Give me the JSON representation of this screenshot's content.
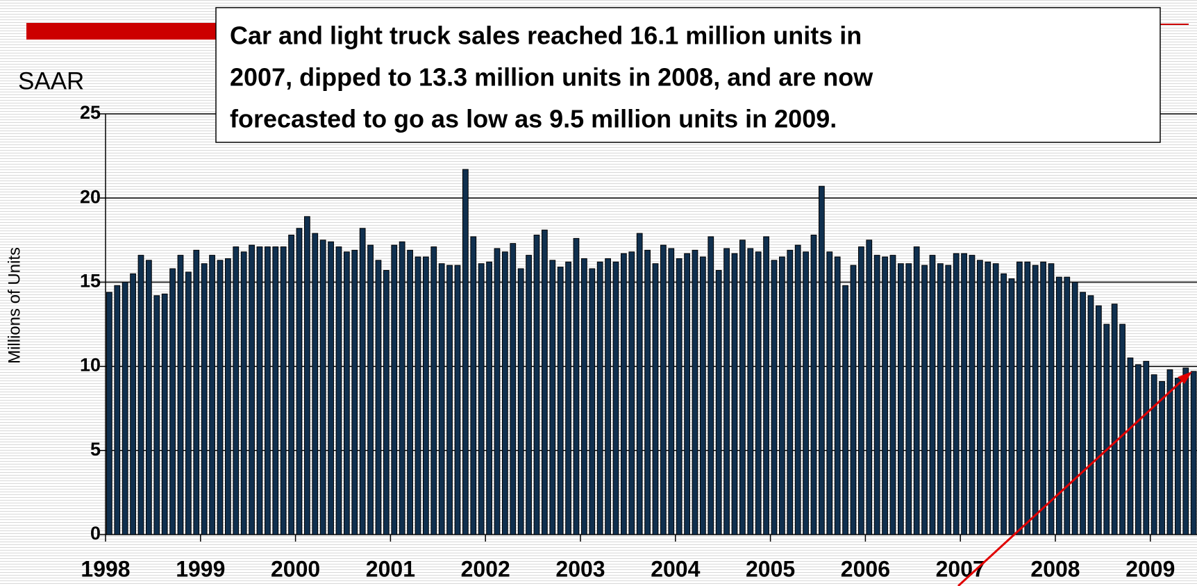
{
  "chart_data": {
    "type": "bar",
    "header": "SAAR",
    "annotation": [
      "Car and light truck sales reached 16.1 million units in",
      "2007, dipped to 13.3 million units in 2008, and are now",
      "forecasted to go as low as 9.5 million units in 2009."
    ],
    "y_label": "Millions of Units",
    "color": "#10304f",
    "categories": [
      "1998",
      null,
      null,
      null,
      null,
      null,
      null,
      null,
      null,
      null,
      null,
      null,
      "1999",
      null,
      null,
      null,
      null,
      null,
      null,
      null,
      null,
      null,
      null,
      null,
      "2000",
      null,
      null,
      null,
      null,
      null,
      null,
      null,
      null,
      null,
      null,
      null,
      "2001",
      null,
      null,
      null,
      null,
      null,
      null,
      null,
      null,
      null,
      null,
      null,
      "2002",
      null,
      null,
      null,
      null,
      null,
      null,
      null,
      null,
      null,
      null,
      null,
      "2003",
      null,
      null,
      null,
      null,
      null,
      null,
      null,
      null,
      null,
      null,
      null,
      "2004",
      null,
      null,
      null,
      null,
      null,
      null,
      null,
      null,
      null,
      null,
      null,
      "2005",
      null,
      null,
      null,
      null,
      null,
      null,
      null,
      null,
      null,
      null,
      null,
      "2006",
      null,
      null,
      null,
      null,
      null,
      null,
      null,
      null,
      null,
      null,
      null,
      "2007",
      null,
      null,
      null,
      null,
      null,
      null,
      null,
      null,
      null,
      null,
      null,
      "2008",
      null,
      null,
      null,
      null,
      null,
      null,
      null,
      null,
      null,
      null,
      null,
      "2009",
      null,
      null,
      null,
      null,
      null
    ],
    "values": [
      14.4,
      14.8,
      15.0,
      15.5,
      16.6,
      16.3,
      14.2,
      14.3,
      15.8,
      16.6,
      15.6,
      16.9,
      16.1,
      16.6,
      16.3,
      16.4,
      17.1,
      16.8,
      17.2,
      17.1,
      17.1,
      17.1,
      17.1,
      17.8,
      18.2,
      18.9,
      17.9,
      17.5,
      17.4,
      17.1,
      16.8,
      16.9,
      18.2,
      17.2,
      16.3,
      15.7,
      17.2,
      17.4,
      16.9,
      16.5,
      16.5,
      17.1,
      16.1,
      16.0,
      16.0,
      21.7,
      17.7,
      16.1,
      16.2,
      17.0,
      16.8,
      17.3,
      15.8,
      16.6,
      17.8,
      18.1,
      16.3,
      15.9,
      16.2,
      17.6,
      16.4,
      15.8,
      16.2,
      16.4,
      16.2,
      16.7,
      16.8,
      17.9,
      16.9,
      16.1,
      17.2,
      17.0,
      16.4,
      16.7,
      16.9,
      16.5,
      17.7,
      15.7,
      17.0,
      16.7,
      17.5,
      17.0,
      16.8,
      17.7,
      16.3,
      16.5,
      16.9,
      17.2,
      16.8,
      17.8,
      20.7,
      16.8,
      16.5,
      14.8,
      16.0,
      17.1,
      17.5,
      16.6,
      16.5,
      16.6,
      16.1,
      16.1,
      17.1,
      16.0,
      16.6,
      16.1,
      16.0,
      16.7,
      16.7,
      16.6,
      16.3,
      16.2,
      16.1,
      15.5,
      15.2,
      16.2,
      16.2,
      16.0,
      16.2,
      16.1,
      15.3,
      15.3,
      15.0,
      14.4,
      14.2,
      13.6,
      12.5,
      13.7,
      12.5,
      10.5,
      10.1,
      10.3,
      9.5,
      9.1,
      9.8,
      9.3,
      9.9,
      9.7
    ],
    "ylim": [
      0,
      25
    ],
    "yticks": [
      0,
      5,
      10,
      15,
      20,
      25
    ],
    "grid": true
  }
}
